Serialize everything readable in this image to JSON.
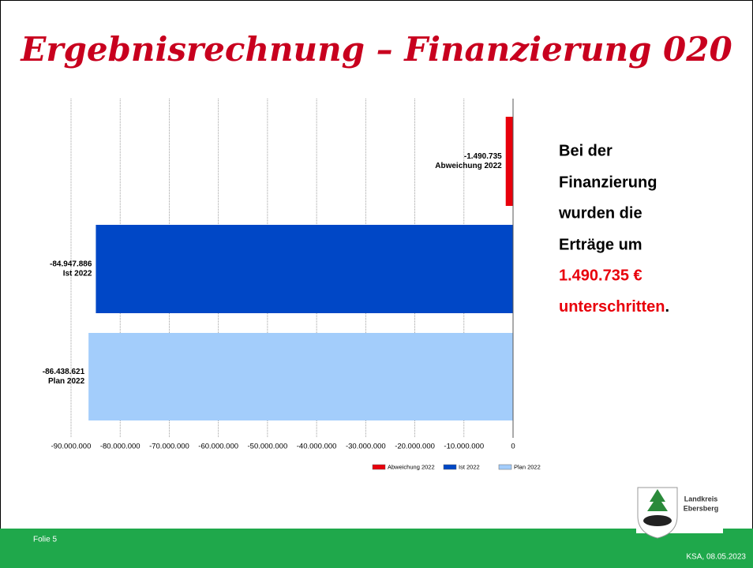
{
  "title": "Ergebnisrechnung – Finanzierung 020",
  "chart_data": {
    "type": "hbar",
    "categories": [
      "Abweichung 2022",
      "Ist 2022",
      "Plan 2022"
    ],
    "values": [
      -1490735,
      -84947886,
      -86438621
    ],
    "value_labels": [
      "-1.490.735",
      "-84.947.886",
      "-86.438.621"
    ],
    "colors": [
      "#e8000b",
      "#0047c6",
      "#a3cdfb"
    ],
    "xlim": [
      -90000000,
      0
    ],
    "xticks": [
      {
        "value": -90000000,
        "label": "-90.000.000"
      },
      {
        "value": -80000000,
        "label": "-80.000.000"
      },
      {
        "value": -70000000,
        "label": "-70.000.000"
      },
      {
        "value": -60000000,
        "label": "-60.000.000"
      },
      {
        "value": -50000000,
        "label": "-50.000.000"
      },
      {
        "value": -40000000,
        "label": "-40.000.000"
      },
      {
        "value": -30000000,
        "label": "-30.000.000"
      },
      {
        "value": -20000000,
        "label": "-20.000.000"
      },
      {
        "value": -10000000,
        "label": "-10.000.000"
      },
      0
    ],
    "grid": true,
    "legend": "bottom-right"
  },
  "text": {
    "lines": [
      "Bei der",
      "Finanzierung",
      "wurden die",
      "Erträge um"
    ],
    "amount": "1.490.735 €",
    "verb": "unterschritten",
    "end": "."
  },
  "logo": {
    "line1": "Landkreis",
    "line2": "Ebersberg"
  },
  "footer": {
    "left": "Folie 5",
    "right": "KSA, 08.05.2023"
  }
}
